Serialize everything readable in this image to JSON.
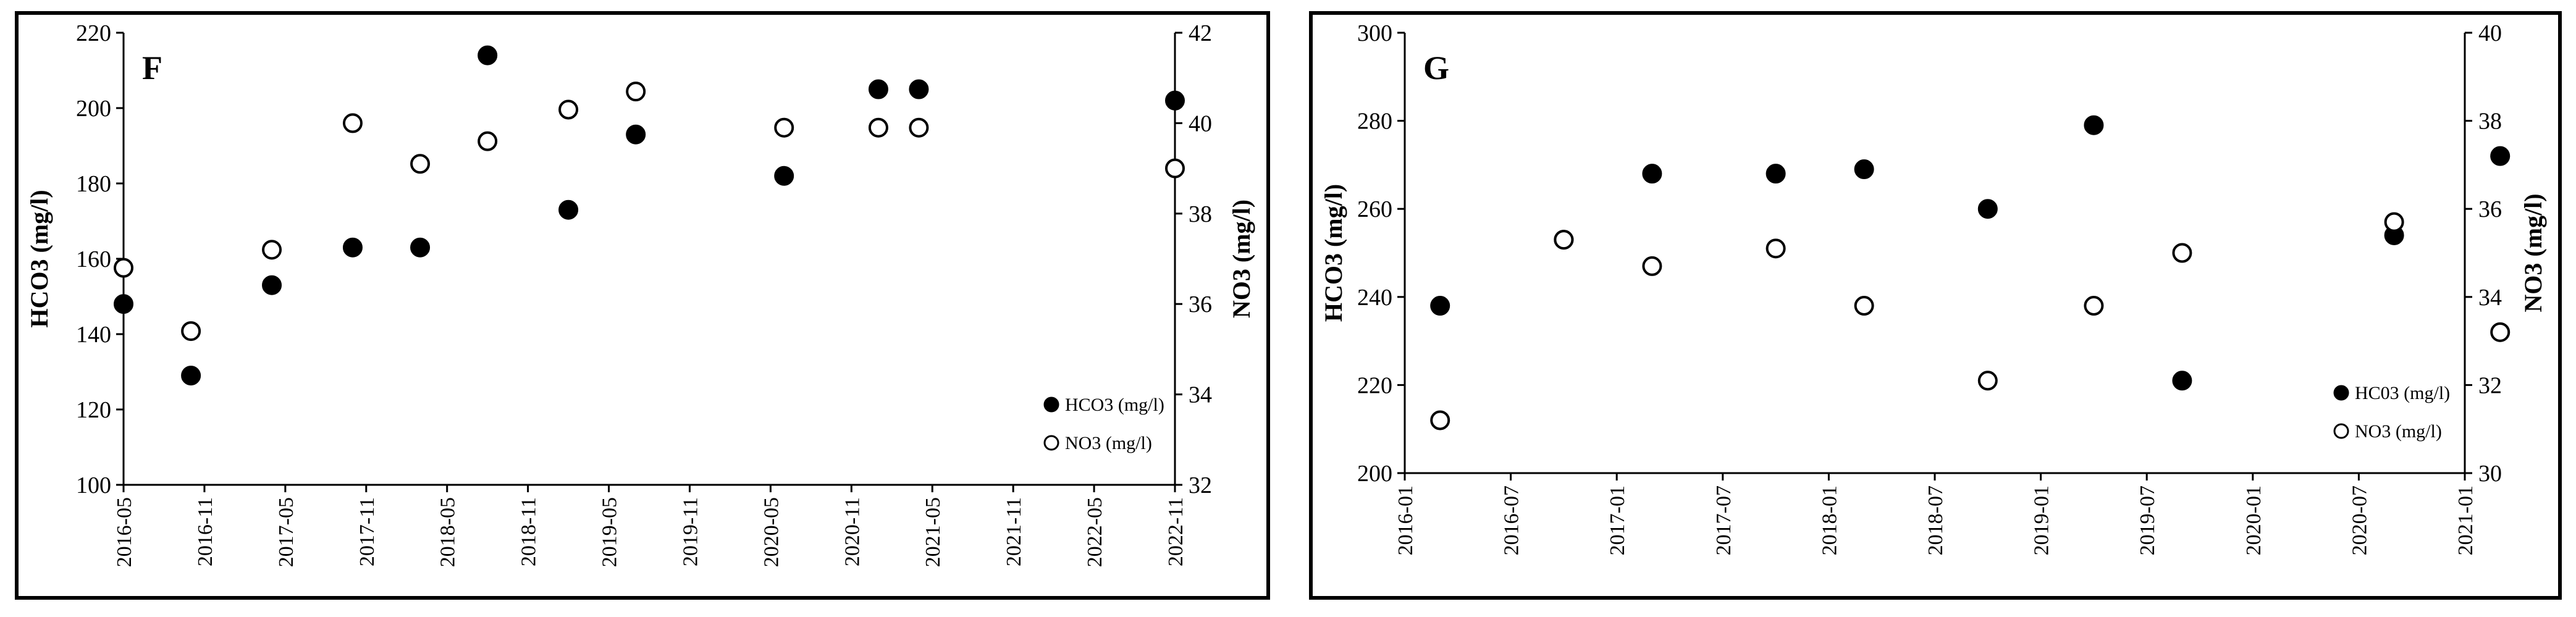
{
  "chart_data": [
    {
      "type": "scatter",
      "title": "F",
      "x": [
        "2016-05",
        "2016-10",
        "2017-04",
        "2017-10",
        "2018-03",
        "2018-08",
        "2019-02",
        "2019-07",
        "2020-06",
        "2021-01",
        "2021-04",
        "2022-11"
      ],
      "xlim": [
        "2016-05",
        "2022-11"
      ],
      "xticks": [
        "2016-05",
        "2016-11",
        "2017-05",
        "2017-11",
        "2018-05",
        "2018-11",
        "2019-05",
        "2019-11",
        "2020-05",
        "2020-11",
        "2021-05",
        "2021-11",
        "2022-05",
        "2022-11"
      ],
      "ylim": [
        100,
        220
      ],
      "yticks": [
        100,
        120,
        140,
        160,
        180,
        200,
        220
      ],
      "y2lim": [
        32,
        42
      ],
      "y2ticks": [
        32,
        34,
        36,
        38,
        40,
        42
      ],
      "y_label": "HCO3 (mg/l)",
      "y2_label": "NO3 (mg/l)",
      "legend": "lower right",
      "series": [
        {
          "name": "HCO3 (mg/l)",
          "color": "#000000",
          "values": [
            148,
            129,
            153,
            163,
            163,
            214,
            173,
            193,
            182,
            205,
            205,
            202
          ]
        },
        {
          "name": "NO3 (mg/l)",
          "color": "#ffffff",
          "axis": "y2",
          "values": [
            36.8,
            35.4,
            37.2,
            40.0,
            39.1,
            39.6,
            40.3,
            40.7,
            39.9,
            39.9,
            39.9,
            39.0
          ]
        }
      ]
    },
    {
      "type": "scatter",
      "title": "G",
      "x": [
        "2016-03",
        "2016-10",
        "2017-03",
        "2017-10",
        "2018-03",
        "2018-10",
        "2019-04",
        "2019-09",
        "2020-09",
        "2021-03"
      ],
      "xlim": [
        "2016-01",
        "2021-01"
      ],
      "xticks": [
        "2016-01",
        "2016-07",
        "2017-01",
        "2017-07",
        "2018-01",
        "2018-07",
        "2019-01",
        "2019-07",
        "2020-01",
        "2020-07",
        "2021-01"
      ],
      "ylim": [
        200,
        300
      ],
      "yticks": [
        200,
        220,
        240,
        260,
        280,
        300
      ],
      "y2lim": [
        30,
        40
      ],
      "y2ticks": [
        30,
        32,
        34,
        36,
        38,
        40
      ],
      "y_label": "HCO3 (mg/l)",
      "y2_label": "NO3 (mg/l)",
      "legend": "lower right",
      "series": [
        {
          "name": "HC03 (mg/l)",
          "color": "#000000",
          "values": [
            238,
            253,
            268,
            268,
            269,
            260,
            279,
            221,
            254,
            272
          ]
        },
        {
          "name": "NO3 (mg/l)",
          "color": "#ffffff",
          "axis": "y2",
          "values": [
            31.2,
            35.3,
            34.7,
            35.1,
            33.8,
            32.1,
            33.8,
            35.0,
            35.7,
            33.2
          ]
        }
      ]
    }
  ]
}
